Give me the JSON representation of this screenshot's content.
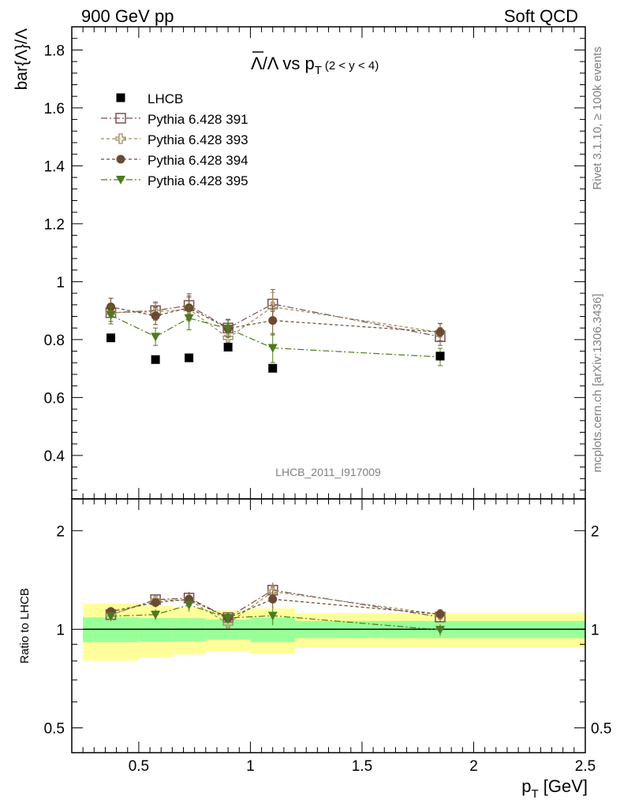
{
  "header": {
    "left_label": "900 GeV pp",
    "right_label": "Soft QCD"
  },
  "side_labels": {
    "rivet": "Rivet 3.1.10, ≥ 100k events",
    "source": "mcplots.cern.ch [arXiv:1306.3436]"
  },
  "chart_data": {
    "type": "scatter",
    "title": {
      "ratio": "Λ/Λ",
      "vs": " vs p",
      "sub": "T",
      "range": " (2 < y < 4)"
    },
    "watermark": "LHCB_2011_I917009",
    "ylabel": "bar{Λ}/Λ",
    "ratio_ylabel": "Ratio to LHCB",
    "xlabel": "p",
    "xlabel_sub": "T",
    "xlabel_unit": " [GeV]",
    "xlim": [
      0.2,
      2.5
    ],
    "ylim": [
      0.25,
      1.88
    ],
    "ratio_ylim": [
      0.42,
      2.5
    ],
    "ratio_log": true,
    "x_ticks": [
      {
        "v": 0.5,
        "label": "0.5"
      },
      {
        "v": 1.0,
        "label": "1"
      },
      {
        "v": 1.5,
        "label": "1.5"
      },
      {
        "v": 2.0,
        "label": "2"
      },
      {
        "v": 2.5,
        "label": "2.5"
      }
    ],
    "y_ticks": [
      {
        "v": 0.4,
        "label": "0.4"
      },
      {
        "v": 0.6,
        "label": "0.6"
      },
      {
        "v": 0.8,
        "label": "0.8"
      },
      {
        "v": 1.0,
        "label": "1"
      },
      {
        "v": 1.2,
        "label": "1.2"
      },
      {
        "v": 1.4,
        "label": "1.4"
      },
      {
        "v": 1.6,
        "label": "1.6"
      },
      {
        "v": 1.8,
        "label": "1.8"
      }
    ],
    "ratio_ticks": [
      {
        "v": 0.5,
        "label": "0.5"
      },
      {
        "v": 1.0,
        "label": "1"
      },
      {
        "v": 2.0,
        "label": "2"
      }
    ],
    "x": [
      0.375,
      0.575,
      0.725,
      0.9,
      1.1,
      1.85
    ],
    "bin_edges": [
      0.25,
      0.5,
      0.65,
      0.8,
      1.0,
      1.2,
      2.5
    ],
    "data": {
      "name": "LHCB",
      "values": [
        0.806,
        0.731,
        0.737,
        0.774,
        0.701,
        0.743
      ],
      "band_inner": [
        0.07,
        0.06,
        0.06,
        0.055,
        0.06,
        0.045
      ],
      "band_outer": [
        0.16,
        0.13,
        0.12,
        0.11,
        0.11,
        0.09
      ]
    },
    "series": [
      {
        "name": "Pythia 6.428 391",
        "marker": "open-square",
        "color": "#7a4e55",
        "dash": "8,3,2,3",
        "values": [
          0.893,
          0.9,
          0.918,
          0.84,
          0.923,
          0.81
        ],
        "errors": [
          0.03,
          0.03,
          0.04,
          0.03,
          0.05,
          0.03
        ]
      },
      {
        "name": "Pythia 6.428 393",
        "marker": "open-cross",
        "color": "#9a8a5c",
        "dash": "4,3",
        "values": [
          0.893,
          0.896,
          0.905,
          0.806,
          0.913,
          0.825
        ],
        "errors": [
          0.03,
          0.03,
          0.04,
          0.03,
          0.05,
          0.03
        ]
      },
      {
        "name": "Pythia 6.428 394",
        "marker": "filled-circle",
        "color": "#6b4a33",
        "dash": "4,3",
        "values": [
          0.913,
          0.882,
          0.91,
          0.838,
          0.866,
          0.826
        ],
        "errors": [
          0.03,
          0.03,
          0.04,
          0.03,
          0.05,
          0.03
        ]
      },
      {
        "name": "Pythia 6.428 395",
        "marker": "filled-triangle-down",
        "color": "#4d7a1e",
        "dash": "8,3,2,3",
        "values": [
          0.884,
          0.81,
          0.874,
          0.838,
          0.771,
          0.74
        ],
        "errors": [
          0.03,
          0.03,
          0.04,
          0.03,
          0.05,
          0.03
        ]
      }
    ],
    "band_colors": {
      "inner": "#99ff99",
      "outer": "#ffff99"
    },
    "legend_position": "top-left"
  }
}
